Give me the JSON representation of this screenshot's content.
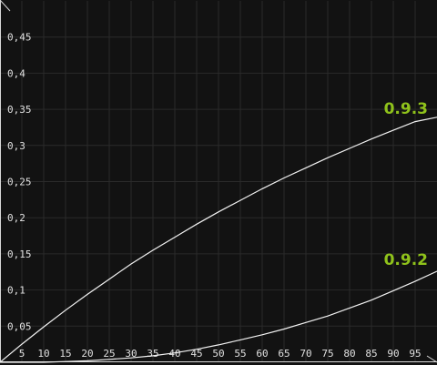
{
  "chart_data": {
    "type": "line",
    "x": [
      0,
      5,
      10,
      15,
      20,
      25,
      30,
      35,
      40,
      45,
      50,
      55,
      60,
      65,
      70,
      75,
      80,
      85,
      90,
      95,
      100
    ],
    "xlim": [
      0,
      100
    ],
    "ylim": [
      0,
      0.5
    ],
    "x_ticks": [
      "5",
      "10",
      "15",
      "20",
      "25",
      "30",
      "35",
      "40",
      "45",
      "50",
      "55",
      "60",
      "65",
      "70",
      "75",
      "80",
      "85",
      "90",
      "95"
    ],
    "y_ticks": [
      "0,05",
      "0,1",
      "0,15",
      "0,2",
      "0,25",
      "0,3",
      "0,35",
      "0,4",
      "0,45"
    ],
    "grid": true,
    "colors": {
      "background": "#121212",
      "grid": "#2a2a2a",
      "line": "#f2f2f2",
      "label": "#8fc21b"
    },
    "series": [
      {
        "name": "0.9.3",
        "values": [
          0,
          0.025,
          0.049,
          0.072,
          0.094,
          0.115,
          0.136,
          0.155,
          0.173,
          0.191,
          0.208,
          0.224,
          0.24,
          0.255,
          0.269,
          0.283,
          0.296,
          0.309,
          0.321,
          0.333,
          0.339
        ]
      },
      {
        "name": "0.9.2",
        "values": [
          0,
          0,
          0,
          0.001,
          0.002,
          0.004,
          0.006,
          0.009,
          0.013,
          0.018,
          0.024,
          0.031,
          0.038,
          0.046,
          0.055,
          0.064,
          0.075,
          0.086,
          0.099,
          0.112,
          0.126
        ]
      }
    ]
  }
}
